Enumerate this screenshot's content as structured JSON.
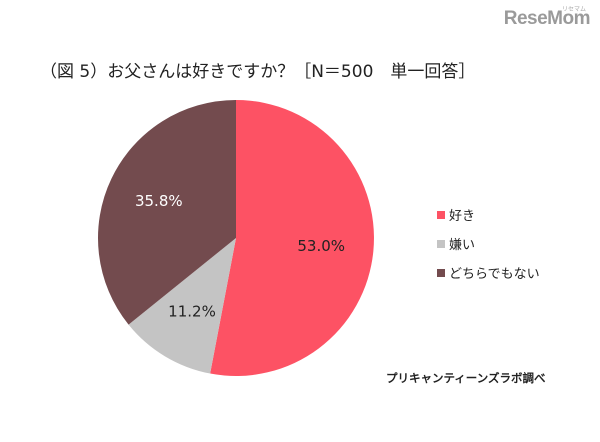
{
  "brand": {
    "logo_text": "ReseMom",
    "logo_subtext": "リセマム"
  },
  "chart_data": {
    "type": "pie",
    "title": "（図 5）お父さんは好きですか？［N＝500　単一回答］",
    "categories": [
      "好き",
      "嫌い",
      "どちらでもない"
    ],
    "values": [
      53.0,
      11.2,
      35.8
    ],
    "labels": [
      "53.0%",
      "11.2%",
      "35.8%"
    ],
    "colors": [
      "#fd5264",
      "#c4c4c4",
      "#734b4e"
    ],
    "label_colors": [
      "#222222",
      "#222222",
      "#ffffff"
    ],
    "legend_position": "right",
    "source": "プリキャンティーンズラボ調べ"
  }
}
